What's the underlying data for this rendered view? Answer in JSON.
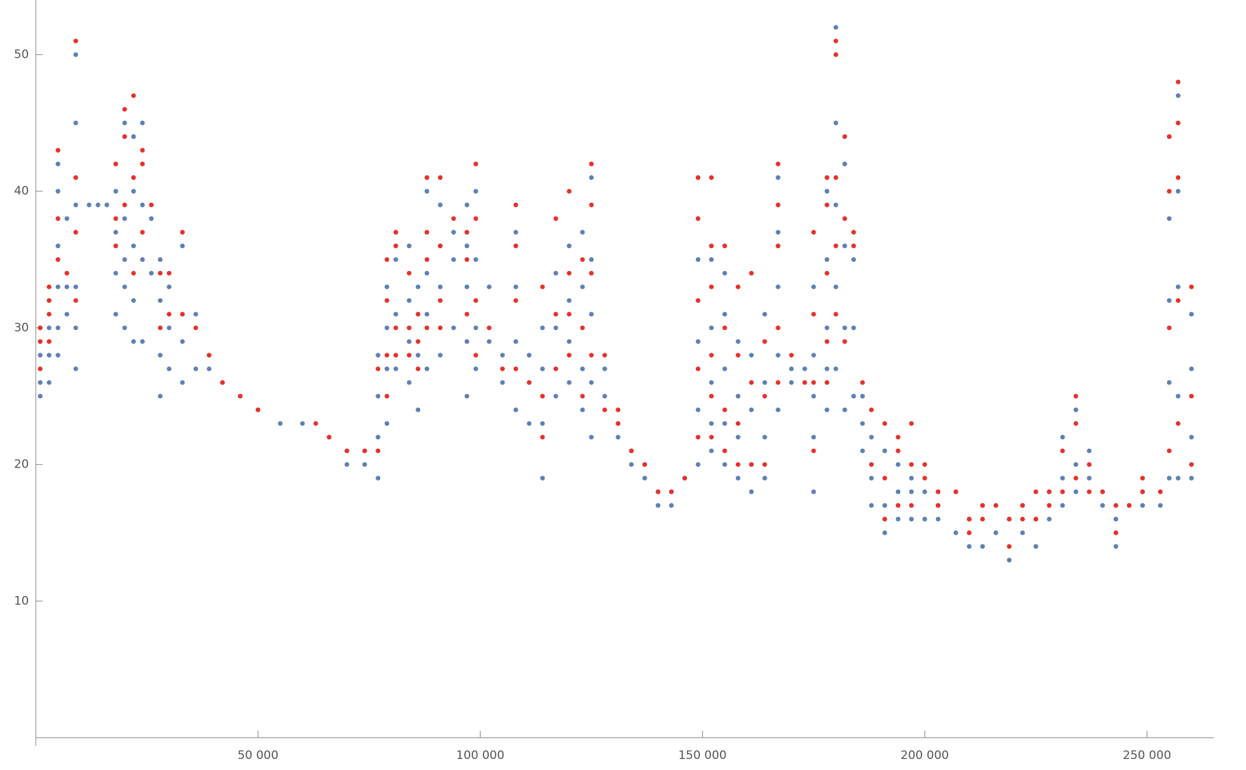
{
  "chart_data": {
    "type": "scatter",
    "xlim": [
      0,
      265000
    ],
    "ylim": [
      0,
      54
    ],
    "xticks": [
      {
        "value": 50000,
        "label": "50 000"
      },
      {
        "value": 100000,
        "label": "100 000"
      },
      {
        "value": 150000,
        "label": "150 000"
      },
      {
        "value": 200000,
        "label": "200 000"
      },
      {
        "value": 250000,
        "label": "250 000"
      }
    ],
    "yticks": [
      10,
      20,
      30,
      40,
      50
    ],
    "grid": false,
    "series": [
      {
        "color": "#5e81b5",
        "x": [
          1000,
          1000,
          1000,
          1000,
          1000,
          3000,
          3000,
          3000,
          3000,
          5000,
          5000,
          5000,
          5000,
          5000,
          5000,
          7000,
          7000,
          7000,
          9000,
          9000,
          9000,
          9000,
          9000,
          9000,
          12000,
          14000,
          16000,
          18000,
          18000,
          18000,
          18000,
          18000,
          20000,
          20000,
          20000,
          20000,
          20000,
          22000,
          22000,
          22000,
          22000,
          22000,
          24000,
          24000,
          24000,
          24000,
          26000,
          26000,
          28000,
          28000,
          28000,
          28000,
          30000,
          30000,
          30000,
          33000,
          33000,
          33000,
          36000,
          36000,
          39000,
          39000,
          42000,
          46000,
          50000,
          55000,
          60000,
          66000,
          70000,
          70000,
          74000,
          74000,
          77000,
          77000,
          77000,
          77000,
          79000,
          79000,
          79000,
          79000,
          81000,
          81000,
          81000,
          84000,
          84000,
          84000,
          84000,
          86000,
          86000,
          86000,
          88000,
          88000,
          88000,
          88000,
          91000,
          91000,
          91000,
          91000,
          94000,
          94000,
          94000,
          97000,
          97000,
          97000,
          97000,
          97000,
          99000,
          99000,
          99000,
          99000,
          102000,
          102000,
          105000,
          105000,
          108000,
          108000,
          108000,
          108000,
          111000,
          111000,
          111000,
          114000,
          114000,
          114000,
          114000,
          117000,
          117000,
          117000,
          120000,
          120000,
          120000,
          120000,
          123000,
          123000,
          123000,
          123000,
          125000,
          125000,
          125000,
          125000,
          125000,
          128000,
          128000,
          131000,
          131000,
          134000,
          134000,
          137000,
          137000,
          140000,
          140000,
          143000,
          143000,
          146000,
          149000,
          149000,
          149000,
          149000,
          149000,
          152000,
          152000,
          152000,
          152000,
          152000,
          155000,
          155000,
          155000,
          155000,
          155000,
          158000,
          158000,
          158000,
          158000,
          161000,
          161000,
          161000,
          161000,
          164000,
          164000,
          164000,
          164000,
          167000,
          167000,
          167000,
          167000,
          167000,
          170000,
          170000,
          173000,
          175000,
          175000,
          175000,
          175000,
          175000,
          178000,
          178000,
          178000,
          178000,
          178000,
          180000,
          180000,
          180000,
          180000,
          180000,
          182000,
          182000,
          182000,
          182000,
          184000,
          184000,
          184000,
          186000,
          186000,
          186000,
          188000,
          188000,
          188000,
          191000,
          191000,
          191000,
          194000,
          194000,
          194000,
          197000,
          197000,
          197000,
          200000,
          200000,
          203000,
          203000,
          203000,
          207000,
          207000,
          210000,
          210000,
          213000,
          213000,
          216000,
          219000,
          219000,
          222000,
          222000,
          225000,
          225000,
          228000,
          228000,
          231000,
          231000,
          231000,
          234000,
          234000,
          234000,
          237000,
          237000,
          240000,
          240000,
          243000,
          243000,
          246000,
          249000,
          249000,
          253000,
          255000,
          255000,
          255000,
          255000,
          255000,
          257000,
          257000,
          257000,
          257000,
          257000,
          260000,
          260000,
          260000,
          260000
        ],
        "values": [
          25,
          26,
          28,
          29,
          30,
          26,
          28,
          30,
          32,
          28,
          30,
          33,
          36,
          40,
          42,
          31,
          33,
          38,
          27,
          30,
          33,
          39,
          45,
          50,
          39,
          39,
          39,
          31,
          34,
          37,
          40,
          42,
          30,
          33,
          35,
          38,
          45,
          29,
          32,
          36,
          40,
          44,
          29,
          35,
          39,
          45,
          34,
          38,
          25,
          28,
          32,
          35,
          27,
          30,
          33,
          26,
          29,
          36,
          27,
          31,
          27,
          28,
          26,
          25,
          24,
          23,
          23,
          22,
          20,
          21,
          20,
          21,
          19,
          22,
          25,
          28,
          23,
          27,
          30,
          33,
          27,
          31,
          35,
          26,
          29,
          32,
          36,
          24,
          28,
          33,
          27,
          31,
          34,
          40,
          28,
          33,
          36,
          39,
          30,
          35,
          37,
          25,
          29,
          33,
          36,
          39,
          27,
          30,
          35,
          40,
          29,
          33,
          26,
          28,
          24,
          29,
          33,
          37,
          23,
          26,
          28,
          19,
          23,
          27,
          30,
          25,
          30,
          34,
          26,
          29,
          32,
          36,
          24,
          27,
          33,
          37,
          22,
          26,
          31,
          35,
          41,
          25,
          27,
          22,
          23,
          20,
          21,
          19,
          20,
          17,
          18,
          17,
          18,
          19,
          20,
          24,
          29,
          35,
          41,
          21,
          23,
          26,
          30,
          35,
          20,
          23,
          27,
          31,
          34,
          19,
          22,
          25,
          29,
          18,
          20,
          24,
          28,
          19,
          22,
          26,
          31,
          24,
          28,
          33,
          37,
          41,
          26,
          27,
          27,
          18,
          22,
          25,
          28,
          33,
          24,
          27,
          30,
          35,
          40,
          27,
          33,
          39,
          45,
          52,
          24,
          30,
          36,
          42,
          25,
          30,
          35,
          21,
          23,
          25,
          17,
          19,
          22,
          15,
          17,
          21,
          16,
          18,
          20,
          16,
          18,
          19,
          16,
          18,
          16,
          17,
          18,
          15,
          18,
          14,
          16,
          14,
          17,
          15,
          13,
          16,
          15,
          17,
          14,
          16,
          16,
          18,
          17,
          19,
          22,
          18,
          20,
          24,
          19,
          21,
          17,
          18,
          14,
          16,
          17,
          17,
          18,
          17,
          19,
          26,
          32,
          38,
          44,
          19,
          25,
          33,
          40,
          47,
          19,
          22,
          27,
          31
        ]
      },
      {
        "color": "#e8312a",
        "x": [
          1000,
          1000,
          1000,
          3000,
          3000,
          3000,
          3000,
          5000,
          5000,
          5000,
          7000,
          9000,
          9000,
          9000,
          9000,
          18000,
          18000,
          18000,
          20000,
          20000,
          20000,
          22000,
          22000,
          22000,
          24000,
          24000,
          24000,
          26000,
          28000,
          28000,
          30000,
          30000,
          33000,
          33000,
          36000,
          39000,
          42000,
          46000,
          50000,
          63000,
          66000,
          70000,
          74000,
          77000,
          77000,
          79000,
          79000,
          79000,
          79000,
          81000,
          81000,
          81000,
          81000,
          84000,
          84000,
          84000,
          86000,
          86000,
          86000,
          88000,
          88000,
          88000,
          88000,
          91000,
          91000,
          91000,
          91000,
          94000,
          97000,
          97000,
          97000,
          99000,
          99000,
          99000,
          99000,
          102000,
          105000,
          108000,
          108000,
          108000,
          108000,
          111000,
          114000,
          114000,
          114000,
          117000,
          117000,
          117000,
          120000,
          120000,
          120000,
          120000,
          123000,
          123000,
          123000,
          125000,
          125000,
          125000,
          125000,
          128000,
          128000,
          131000,
          131000,
          134000,
          137000,
          140000,
          143000,
          146000,
          149000,
          149000,
          149000,
          149000,
          149000,
          152000,
          152000,
          152000,
          152000,
          152000,
          152000,
          155000,
          155000,
          155000,
          155000,
          158000,
          158000,
          158000,
          158000,
          161000,
          161000,
          161000,
          164000,
          164000,
          164000,
          167000,
          167000,
          167000,
          167000,
          167000,
          170000,
          173000,
          175000,
          175000,
          175000,
          175000,
          178000,
          178000,
          178000,
          178000,
          178000,
          180000,
          180000,
          180000,
          180000,
          180000,
          182000,
          182000,
          182000,
          184000,
          184000,
          186000,
          188000,
          188000,
          191000,
          191000,
          191000,
          194000,
          194000,
          194000,
          197000,
          197000,
          197000,
          200000,
          200000,
          203000,
          203000,
          207000,
          210000,
          210000,
          213000,
          213000,
          216000,
          219000,
          219000,
          222000,
          222000,
          225000,
          225000,
          228000,
          228000,
          231000,
          231000,
          234000,
          234000,
          234000,
          237000,
          237000,
          240000,
          243000,
          243000,
          246000,
          249000,
          249000,
          253000,
          255000,
          255000,
          255000,
          255000,
          257000,
          257000,
          257000,
          257000,
          257000,
          260000,
          260000,
          260000
        ],
        "values": [
          27,
          29,
          30,
          29,
          31,
          32,
          33,
          35,
          38,
          43,
          34,
          32,
          37,
          41,
          51,
          36,
          38,
          42,
          39,
          44,
          46,
          34,
          41,
          47,
          37,
          42,
          43,
          39,
          30,
          34,
          31,
          34,
          31,
          37,
          30,
          28,
          26,
          25,
          24,
          23,
          22,
          21,
          21,
          21,
          27,
          25,
          28,
          32,
          35,
          28,
          30,
          36,
          37,
          28,
          30,
          34,
          27,
          29,
          31,
          30,
          35,
          37,
          41,
          30,
          32,
          36,
          41,
          38,
          31,
          35,
          37,
          28,
          32,
          38,
          42,
          30,
          27,
          27,
          32,
          36,
          39,
          26,
          22,
          25,
          33,
          27,
          31,
          38,
          28,
          31,
          34,
          40,
          25,
          30,
          35,
          28,
          34,
          39,
          42,
          24,
          28,
          23,
          24,
          21,
          20,
          18,
          18,
          19,
          22,
          27,
          32,
          38,
          41,
          22,
          25,
          28,
          33,
          36,
          41,
          21,
          24,
          30,
          36,
          20,
          23,
          28,
          33,
          20,
          26,
          34,
          20,
          25,
          29,
          26,
          30,
          36,
          39,
          42,
          28,
          26,
          21,
          26,
          31,
          37,
          26,
          29,
          34,
          39,
          41,
          31,
          36,
          41,
          50,
          51,
          29,
          38,
          44,
          36,
          37,
          26,
          20,
          24,
          16,
          19,
          23,
          17,
          21,
          22,
          17,
          20,
          23,
          19,
          20,
          17,
          18,
          18,
          15,
          16,
          16,
          17,
          17,
          14,
          16,
          16,
          17,
          16,
          18,
          17,
          18,
          18,
          21,
          19,
          23,
          25,
          18,
          20,
          18,
          15,
          17,
          17,
          18,
          19,
          18,
          21,
          30,
          40,
          44,
          23,
          32,
          41,
          45,
          48,
          20,
          25,
          33
        ]
      }
    ]
  }
}
